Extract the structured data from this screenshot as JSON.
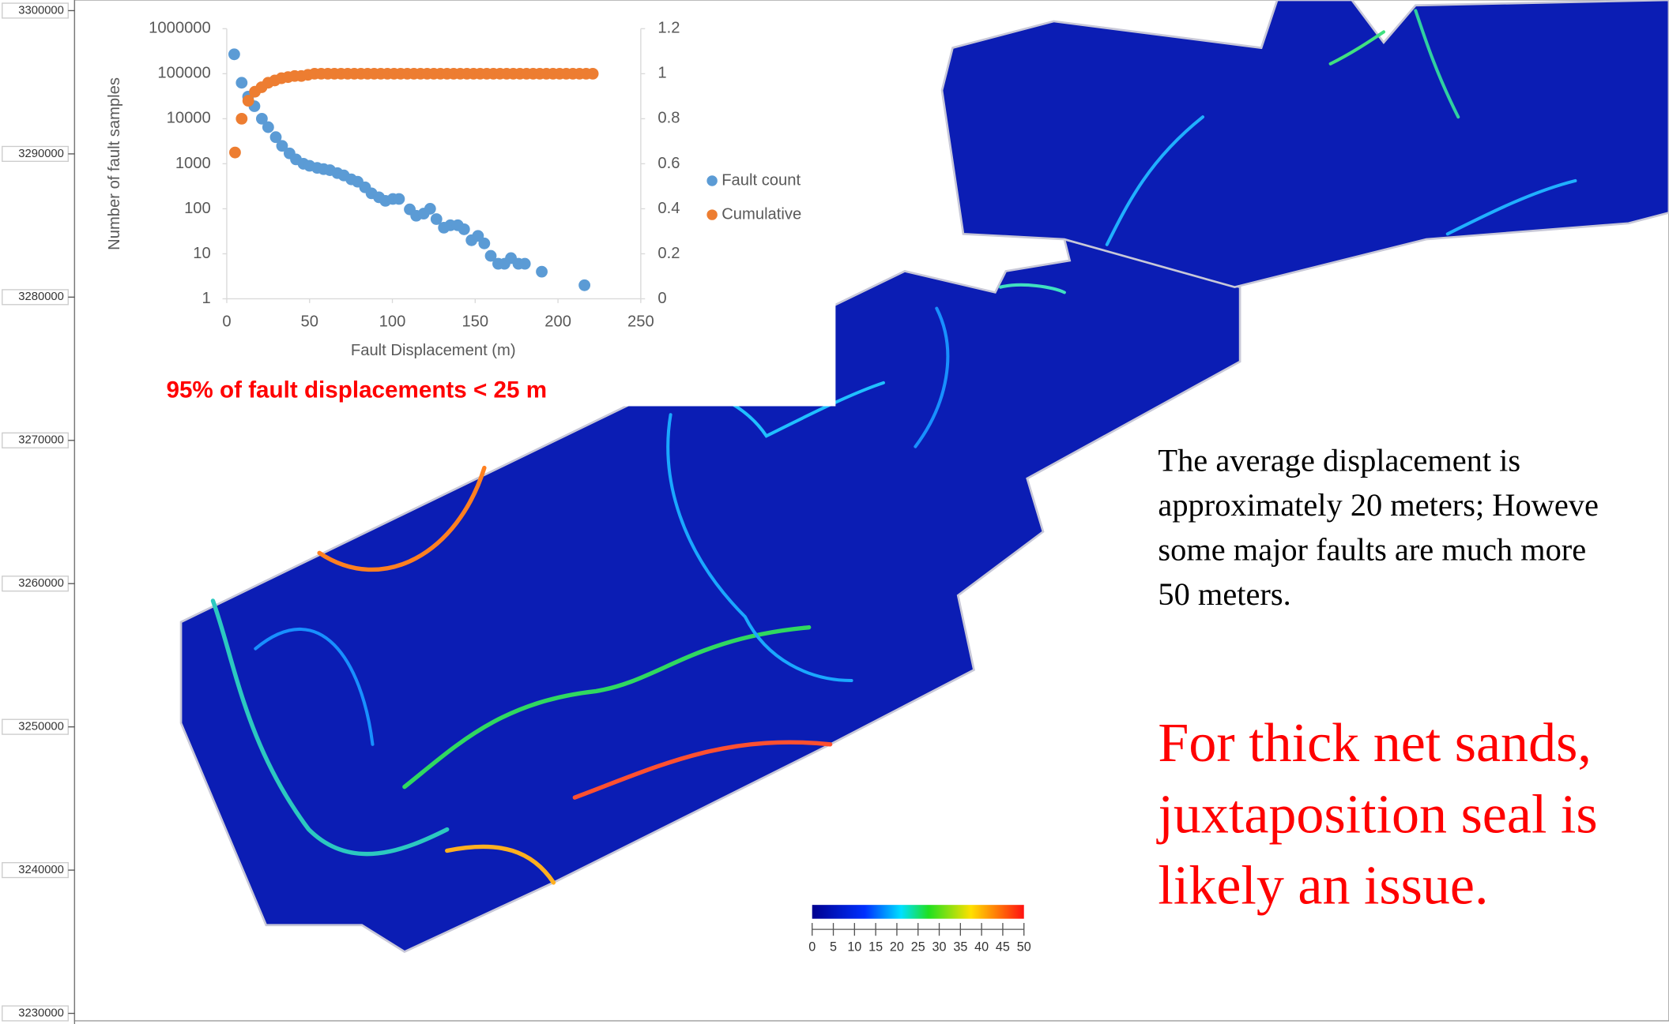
{
  "chart_data": {
    "type": "scatter",
    "y_label": "Number of fault samples",
    "x_label": "Fault Displacement (m)",
    "annotation": "95% of fault displacements < 25 m",
    "xlim": [
      0,
      250
    ],
    "xticks": [
      0,
      50,
      100,
      150,
      200,
      250
    ],
    "ylim": [
      1,
      1000000
    ],
    "yscale": "log",
    "yticks": [
      1,
      10,
      100,
      1000,
      10000,
      100000,
      1000000
    ],
    "y2lim": [
      0,
      1.2
    ],
    "y2ticks": [
      0,
      0.2,
      0.4,
      0.6,
      0.8,
      1,
      1.2
    ],
    "legend": "right",
    "series": [
      {
        "name": "Fault count",
        "color": "#5b9bd5",
        "x": [
          4.5,
          9,
          12.9,
          16.7,
          21.2,
          25,
          29.6,
          33.4,
          37.9,
          41.8,
          46.3,
          50,
          54.6,
          58.5,
          62.3,
          66.8,
          70.7,
          75.2,
          79,
          83.5,
          87.4,
          91.9,
          95.8,
          100.3,
          104,
          110.5,
          114.4,
          118.9,
          122.8,
          126.6,
          131.1,
          135,
          139.5,
          143.3,
          147.8,
          151.7,
          155.5,
          159.4,
          163.9,
          167.7,
          171.6,
          176.1,
          180,
          190.2,
          216
        ],
        "values": [
          270000,
          63000,
          31000,
          19000,
          10000,
          6500,
          3900,
          2500,
          1700,
          1250,
          1000,
          900,
          810,
          760,
          720,
          620,
          550,
          450,
          400,
          300,
          220,
          180,
          150,
          165,
          165,
          97,
          70,
          78,
          100,
          59,
          38,
          43,
          43,
          35,
          20,
          25,
          17,
          9,
          6,
          6,
          8,
          6,
          6,
          4,
          2
        ]
      },
      {
        "name": "Cumulative",
        "color": "#ed7d31",
        "axis": "y2",
        "x": [
          5,
          9,
          13,
          17,
          21,
          25,
          29,
          33,
          37,
          41,
          45,
          49,
          53,
          57,
          61,
          65,
          69,
          73,
          77,
          81,
          85,
          89,
          93,
          97,
          101,
          105,
          109,
          113,
          117,
          121,
          125,
          129,
          133,
          137,
          141,
          145,
          149,
          153,
          157,
          161,
          165,
          169,
          173,
          177,
          181,
          185,
          189,
          193,
          197,
          201,
          205,
          209,
          213,
          217,
          221
        ],
        "values": [
          0.65,
          0.8,
          0.88,
          0.92,
          0.94,
          0.96,
          0.97,
          0.98,
          0.985,
          0.99,
          0.99,
          0.995,
          1,
          1,
          1,
          1,
          1,
          1,
          1,
          1,
          1,
          1,
          1,
          1,
          1,
          1,
          1,
          1,
          1,
          1,
          1,
          1,
          1,
          1,
          1,
          1,
          1,
          1,
          1,
          1,
          1,
          1,
          1,
          1,
          1,
          1,
          1,
          1,
          1,
          1,
          1,
          1,
          1,
          1,
          1
        ]
      }
    ]
  },
  "map": {
    "ylim": [
      3230000,
      3300000
    ],
    "yticks": [
      3230000,
      3240000,
      3250000,
      3260000,
      3270000,
      3280000,
      3290000,
      3300000
    ]
  },
  "colorbar": {
    "range": [
      0,
      50
    ],
    "ticks": [
      0,
      5,
      10,
      15,
      20,
      25,
      30,
      35,
      40,
      45,
      50
    ]
  },
  "notes": {
    "paragraph": [
      "The average displacement is",
      "approximately 20 meters; Howeve",
      "some major faults are much more",
      "50 meters."
    ],
    "conclusion": [
      "For thick net sands,",
      "juxtaposition seal is",
      "likely an issue."
    ]
  }
}
